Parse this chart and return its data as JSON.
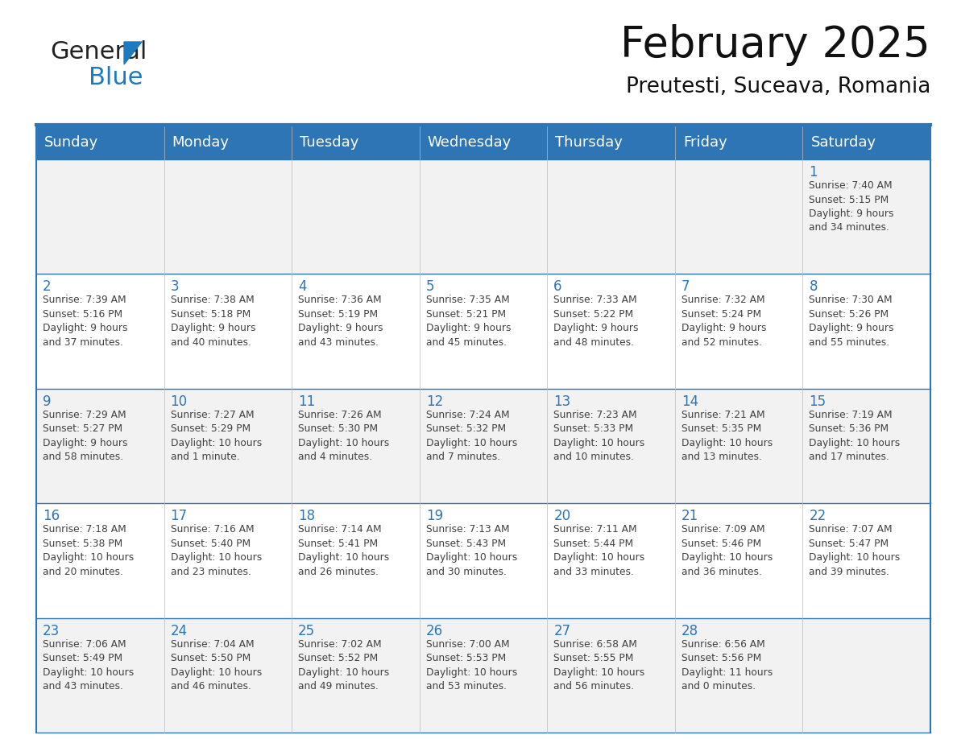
{
  "title": "February 2025",
  "subtitle": "Preutesti, Suceava, Romania",
  "header_bg": "#2E75B6",
  "header_text": "#FFFFFF",
  "row_bg_light": "#F2F2F2",
  "row_bg_white": "#FFFFFF",
  "cell_border_color": "#2E75B6",
  "cell_text_color": "#404040",
  "day_num_color": "#2E75B6",
  "day_headers": [
    "Sunday",
    "Monday",
    "Tuesday",
    "Wednesday",
    "Thursday",
    "Friday",
    "Saturday"
  ],
  "calendar_data": [
    [
      "",
      "",
      "",
      "",
      "",
      "",
      "1\nSunrise: 7:40 AM\nSunset: 5:15 PM\nDaylight: 9 hours\nand 34 minutes."
    ],
    [
      "2\nSunrise: 7:39 AM\nSunset: 5:16 PM\nDaylight: 9 hours\nand 37 minutes.",
      "3\nSunrise: 7:38 AM\nSunset: 5:18 PM\nDaylight: 9 hours\nand 40 minutes.",
      "4\nSunrise: 7:36 AM\nSunset: 5:19 PM\nDaylight: 9 hours\nand 43 minutes.",
      "5\nSunrise: 7:35 AM\nSunset: 5:21 PM\nDaylight: 9 hours\nand 45 minutes.",
      "6\nSunrise: 7:33 AM\nSunset: 5:22 PM\nDaylight: 9 hours\nand 48 minutes.",
      "7\nSunrise: 7:32 AM\nSunset: 5:24 PM\nDaylight: 9 hours\nand 52 minutes.",
      "8\nSunrise: 7:30 AM\nSunset: 5:26 PM\nDaylight: 9 hours\nand 55 minutes."
    ],
    [
      "9\nSunrise: 7:29 AM\nSunset: 5:27 PM\nDaylight: 9 hours\nand 58 minutes.",
      "10\nSunrise: 7:27 AM\nSunset: 5:29 PM\nDaylight: 10 hours\nand 1 minute.",
      "11\nSunrise: 7:26 AM\nSunset: 5:30 PM\nDaylight: 10 hours\nand 4 minutes.",
      "12\nSunrise: 7:24 AM\nSunset: 5:32 PM\nDaylight: 10 hours\nand 7 minutes.",
      "13\nSunrise: 7:23 AM\nSunset: 5:33 PM\nDaylight: 10 hours\nand 10 minutes.",
      "14\nSunrise: 7:21 AM\nSunset: 5:35 PM\nDaylight: 10 hours\nand 13 minutes.",
      "15\nSunrise: 7:19 AM\nSunset: 5:36 PM\nDaylight: 10 hours\nand 17 minutes."
    ],
    [
      "16\nSunrise: 7:18 AM\nSunset: 5:38 PM\nDaylight: 10 hours\nand 20 minutes.",
      "17\nSunrise: 7:16 AM\nSunset: 5:40 PM\nDaylight: 10 hours\nand 23 minutes.",
      "18\nSunrise: 7:14 AM\nSunset: 5:41 PM\nDaylight: 10 hours\nand 26 minutes.",
      "19\nSunrise: 7:13 AM\nSunset: 5:43 PM\nDaylight: 10 hours\nand 30 minutes.",
      "20\nSunrise: 7:11 AM\nSunset: 5:44 PM\nDaylight: 10 hours\nand 33 minutes.",
      "21\nSunrise: 7:09 AM\nSunset: 5:46 PM\nDaylight: 10 hours\nand 36 minutes.",
      "22\nSunrise: 7:07 AM\nSunset: 5:47 PM\nDaylight: 10 hours\nand 39 minutes."
    ],
    [
      "23\nSunrise: 7:06 AM\nSunset: 5:49 PM\nDaylight: 10 hours\nand 43 minutes.",
      "24\nSunrise: 7:04 AM\nSunset: 5:50 PM\nDaylight: 10 hours\nand 46 minutes.",
      "25\nSunrise: 7:02 AM\nSunset: 5:52 PM\nDaylight: 10 hours\nand 49 minutes.",
      "26\nSunrise: 7:00 AM\nSunset: 5:53 PM\nDaylight: 10 hours\nand 53 minutes.",
      "27\nSunrise: 6:58 AM\nSunset: 5:55 PM\nDaylight: 10 hours\nand 56 minutes.",
      "28\nSunrise: 6:56 AM\nSunset: 5:56 PM\nDaylight: 11 hours\nand 0 minutes.",
      ""
    ]
  ],
  "num_rows": 5,
  "num_cols": 7,
  "title_fontsize": 38,
  "subtitle_fontsize": 19,
  "header_fontsize": 13,
  "day_num_fontsize": 12,
  "cell_text_fontsize": 8.8,
  "logo_general_color": "#222222",
  "logo_blue_color": "#1E7AC0",
  "logo_triangle_color": "#1E7AC0"
}
